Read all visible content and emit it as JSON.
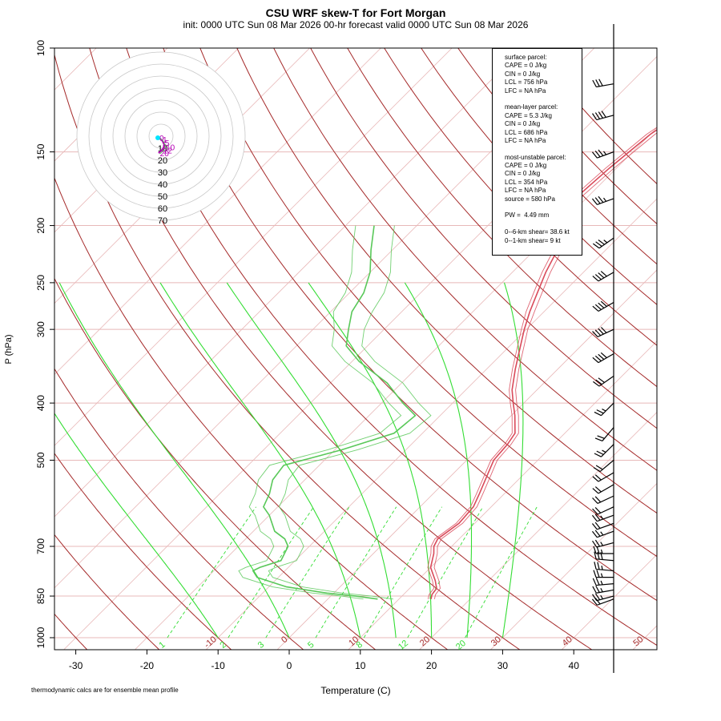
{
  "header": {
    "title": "CSU WRF skew-T for Fort Morgan",
    "subtitle": "init: 0000 UTC Sun 08 Mar 2026     00-hr forecast valid 0000 UTC Sun 08 Mar 2026"
  },
  "stats": {
    "surface_title": "surface parcel:",
    "surface_cape": "CAPE = 0 J/kg",
    "surface_cin": "CIN = 0 J/kg",
    "surface_lcl": "LCL = 756 hPa",
    "surface_lfc": "LFC = NA hPa",
    "mean_title": "mean-layer parcel:",
    "mean_cape": "CAPE = 5.3 J/kg",
    "mean_cin": "CIN = 0 J/kg",
    "mean_lcl": "LCL = 686 hPa",
    "mean_lfc": "LFC = NA hPa",
    "mu_title": "most-unstable parcel:",
    "mu_cape": "CAPE = 0 J/kg",
    "mu_cin": "CIN = 0 J/kg",
    "mu_lcl": "LCL = 354 hPa",
    "mu_lfc": "LFC = NA hPa",
    "mu_source": "source = 580 hPa",
    "pw": "PW =  4.49 mm",
    "shear6": "0--6-km shear= 38.6 kt",
    "shear1": "0--1-km shear= 9 kt"
  },
  "footnote": "thermodynamic calcs are for ensemble mean profile",
  "colors": {
    "temperature": "#d94a5a",
    "dewpoint": "#59c859",
    "dry_adiabat": "#a52a2a",
    "moist_adiabat": "#33dd33",
    "mixing_ratio": "#33dd33",
    "isobar": "#e8b8b8",
    "isotherm": "#e8b8b8",
    "hodograph_ring": "#c8c8c8",
    "hodograph_trace": "#b300b3",
    "hodograph_point": "#00e5ff"
  },
  "chart_data": {
    "type": "skew-t",
    "xlabel": "Temperature (C)",
    "ylabel": "P (hPa)",
    "x_ticks": [
      -30,
      -20,
      -10,
      0,
      10,
      20,
      30,
      40
    ],
    "x_tick_labels": [
      "-30",
      "-20",
      "-10",
      "0",
      "10",
      "20",
      "30",
      "40"
    ],
    "p_ticks": [
      1000,
      850,
      700,
      500,
      400,
      300,
      250,
      200,
      150,
      100
    ],
    "p_tick_labels": [
      "1000",
      "850",
      "700",
      "500",
      "400",
      "300",
      "250",
      "200",
      "150",
      "100"
    ],
    "xlim": [
      -33,
      52
    ],
    "plim": [
      1050,
      100
    ],
    "dry_adiabat_labels": [
      {
        "theta_c": -10,
        "text": "-10"
      },
      {
        "theta_c": 0,
        "text": "0"
      },
      {
        "theta_c": 10,
        "text": "10"
      },
      {
        "theta_c": 20,
        "text": "20"
      },
      {
        "theta_c": 30,
        "text": "30"
      },
      {
        "theta_c": 40,
        "text": "40"
      },
      {
        "theta_c": 50,
        "text": "50"
      }
    ],
    "mixing_ratio_labels": [
      {
        "w_gkg": 1,
        "text": "1"
      },
      {
        "w_gkg": 2,
        "text": "2"
      },
      {
        "w_gkg": 3,
        "text": "3"
      },
      {
        "w_gkg": 5,
        "text": "5"
      },
      {
        "w_gkg": 8,
        "text": "8"
      },
      {
        "w_gkg": 12,
        "text": "12"
      },
      {
        "w_gkg": 20,
        "text": "20"
      }
    ],
    "temperature_profile": [
      {
        "p": 860,
        "t": 14.5
      },
      {
        "p": 845,
        "t": 14.0
      },
      {
        "p": 825,
        "t": 13.8
      },
      {
        "p": 800,
        "t": 12.5
      },
      {
        "p": 760,
        "t": 10.0
      },
      {
        "p": 720,
        "t": 8.5
      },
      {
        "p": 700,
        "t": 7.5
      },
      {
        "p": 680,
        "t": 7.0
      },
      {
        "p": 640,
        "t": 7.8
      },
      {
        "p": 600,
        "t": 7.5
      },
      {
        "p": 570,
        "t": 6.5
      },
      {
        "p": 530,
        "t": 5.0
      },
      {
        "p": 500,
        "t": 3.8
      },
      {
        "p": 470,
        "t": 3.5
      },
      {
        "p": 450,
        "t": 3.0
      },
      {
        "p": 420,
        "t": 0.5
      },
      {
        "p": 400,
        "t": -1.5
      },
      {
        "p": 380,
        "t": -3.5
      },
      {
        "p": 350,
        "t": -6.0
      },
      {
        "p": 320,
        "t": -8.5
      },
      {
        "p": 300,
        "t": -10.3
      },
      {
        "p": 280,
        "t": -12.0
      },
      {
        "p": 260,
        "t": -13.6
      },
      {
        "p": 240,
        "t": -15.3
      },
      {
        "p": 220,
        "t": -16.8
      },
      {
        "p": 210,
        "t": -17.5
      },
      {
        "p": 200,
        "t": -19.0
      },
      {
        "p": 185,
        "t": -21.0
      },
      {
        "p": 178,
        "t": -21.5
      },
      {
        "p": 160,
        "t": -21.0
      },
      {
        "p": 140,
        "t": -20.0
      },
      {
        "p": 125,
        "t": -18.0
      },
      {
        "p": 112,
        "t": -16.0
      }
    ],
    "dewpoint_profile": [
      {
        "p": 860,
        "t": 7.0
      },
      {
        "p": 850,
        "t": 3.5
      },
      {
        "p": 840,
        "t": -1.0
      },
      {
        "p": 820,
        "t": -7.5
      },
      {
        "p": 790,
        "t": -13.0
      },
      {
        "p": 770,
        "t": -14.5
      },
      {
        "p": 760,
        "t": -14.0
      },
      {
        "p": 740,
        "t": -12.0
      },
      {
        "p": 700,
        "t": -13.0
      },
      {
        "p": 680,
        "t": -14.5
      },
      {
        "p": 660,
        "t": -17.0
      },
      {
        "p": 620,
        "t": -20.0
      },
      {
        "p": 600,
        "t": -22.0
      },
      {
        "p": 570,
        "t": -23.0
      },
      {
        "p": 540,
        "t": -24.5
      },
      {
        "p": 510,
        "t": -25.0
      },
      {
        "p": 480,
        "t": -19.0
      },
      {
        "p": 450,
        "t": -14.0
      },
      {
        "p": 420,
        "t": -13.5
      },
      {
        "p": 400,
        "t": -17.0
      },
      {
        "p": 370,
        "t": -22.0
      },
      {
        "p": 340,
        "t": -29.0
      },
      {
        "p": 320,
        "t": -33.0
      },
      {
        "p": 300,
        "t": -35.0
      },
      {
        "p": 280,
        "t": -37.0
      },
      {
        "p": 260,
        "t": -38.0
      },
      {
        "p": 240,
        "t": -40.0
      },
      {
        "p": 220,
        "t": -43.0
      },
      {
        "p": 200,
        "t": -46.0
      }
    ],
    "hodograph": {
      "ring_labels": [
        "10",
        "20",
        "30",
        "40",
        "50",
        "60",
        "70"
      ],
      "trace_kt": [
        [
          0,
          0
        ],
        [
          2,
          -0.5
        ],
        [
          4,
          -1.5
        ],
        [
          6,
          -3
        ],
        [
          8,
          -5
        ],
        [
          9,
          -7
        ],
        [
          10,
          -9
        ],
        [
          11,
          -11
        ],
        [
          12,
          -13
        ],
        [
          11,
          -15
        ],
        [
          12,
          -17
        ],
        [
          10,
          -19
        ],
        [
          9,
          -21
        ],
        [
          7,
          -23
        ],
        [
          5,
          -25
        ],
        [
          3,
          -27
        ],
        [
          1,
          -28
        ]
      ],
      "trace_labels": [
        "0",
        "1",
        "5",
        "10",
        "12",
        "20"
      ]
    },
    "wind_barbs": [
      {
        "p": 860,
        "dir": 250,
        "kt": 20
      },
      {
        "p": 850,
        "dir": 255,
        "kt": 25
      },
      {
        "p": 830,
        "dir": 260,
        "kt": 25
      },
      {
        "p": 810,
        "dir": 265,
        "kt": 25
      },
      {
        "p": 790,
        "dir": 270,
        "kt": 25
      },
      {
        "p": 770,
        "dir": 275,
        "kt": 25
      },
      {
        "p": 740,
        "dir": 275,
        "kt": 30
      },
      {
        "p": 720,
        "dir": 270,
        "kt": 25
      },
      {
        "p": 690,
        "dir": 255,
        "kt": 25
      },
      {
        "p": 660,
        "dir": 250,
        "kt": 25
      },
      {
        "p": 640,
        "dir": 250,
        "kt": 20
      },
      {
        "p": 620,
        "dir": 250,
        "kt": 25
      },
      {
        "p": 600,
        "dir": 245,
        "kt": 20
      },
      {
        "p": 575,
        "dir": 245,
        "kt": 20
      },
      {
        "p": 550,
        "dir": 240,
        "kt": 20
      },
      {
        "p": 525,
        "dir": 240,
        "kt": 20
      },
      {
        "p": 500,
        "dir": 230,
        "kt": 20
      },
      {
        "p": 470,
        "dir": 225,
        "kt": 25
      },
      {
        "p": 440,
        "dir": 220,
        "kt": 20
      },
      {
        "p": 400,
        "dir": 225,
        "kt": 25
      },
      {
        "p": 360,
        "dir": 235,
        "kt": 30
      },
      {
        "p": 330,
        "dir": 240,
        "kt": 40
      },
      {
        "p": 300,
        "dir": 245,
        "kt": 40
      },
      {
        "p": 270,
        "dir": 240,
        "kt": 40
      },
      {
        "p": 240,
        "dir": 240,
        "kt": 40
      },
      {
        "p": 210,
        "dir": 235,
        "kt": 35
      },
      {
        "p": 180,
        "dir": 250,
        "kt": 35
      },
      {
        "p": 150,
        "dir": 250,
        "kt": 35
      },
      {
        "p": 130,
        "dir": 255,
        "kt": 40
      },
      {
        "p": 115,
        "dir": 260,
        "kt": 30
      }
    ]
  }
}
